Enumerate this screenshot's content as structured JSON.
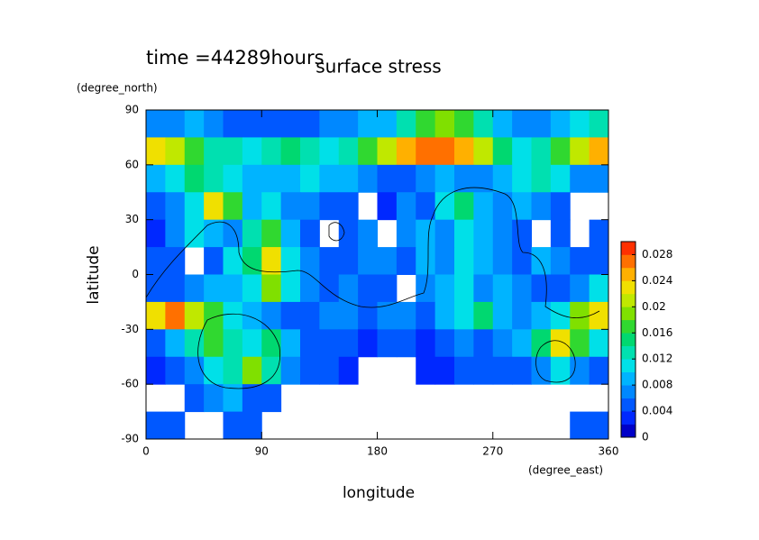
{
  "chart_data": {
    "type": "heatmap",
    "title": "surface stress",
    "subtitle": "time =44289hours",
    "x_label": "longitude",
    "x_units": "(degree_east)",
    "y_label": "latitude",
    "y_units": "(degree_north)",
    "xlim": [
      0,
      360
    ],
    "ylim": [
      -90,
      90
    ],
    "xticks": [
      0,
      90,
      180,
      270,
      360
    ],
    "yticks": [
      -90,
      -60,
      -30,
      0,
      30,
      60,
      90
    ],
    "x": [
      7.5,
      22.5,
      37.5,
      52.5,
      67.5,
      82.5,
      97.5,
      112.5,
      127.5,
      142.5,
      157.5,
      172.5,
      187.5,
      202.5,
      217.5,
      232.5,
      247.5,
      262.5,
      277.5,
      292.5,
      307.5,
      322.5,
      337.5,
      352.5
    ],
    "y": [
      82.5,
      67.5,
      52.5,
      37.5,
      22.5,
      7.5,
      -7.5,
      -22.5,
      -37.5,
      -52.5,
      -67.5,
      -82.5
    ],
    "values": [
      [
        0.006,
        0.006,
        0.008,
        0.006,
        0.005,
        0.005,
        0.004,
        0.004,
        0.005,
        0.006,
        0.006,
        0.008,
        0.008,
        0.012,
        0.016,
        0.018,
        0.016,
        0.012,
        0.008,
        0.006,
        0.006,
        0.008,
        0.01,
        0.012
      ],
      [
        0.022,
        0.02,
        0.016,
        0.012,
        0.012,
        0.01,
        0.012,
        0.014,
        0.012,
        0.01,
        0.012,
        0.016,
        0.02,
        0.024,
        0.026,
        0.026,
        0.024,
        0.02,
        0.014,
        0.01,
        0.012,
        0.016,
        0.02,
        0.024
      ],
      [
        0.008,
        0.01,
        0.014,
        0.012,
        0.01,
        0.008,
        0.008,
        0.008,
        0.01,
        0.008,
        0.008,
        0.006,
        0.004,
        0.004,
        0.006,
        0.008,
        0.006,
        0.006,
        0.008,
        0.01,
        0.012,
        0.01,
        0.006,
        0.006
      ],
      [
        0.004,
        0.006,
        0.01,
        0.022,
        0.016,
        0.008,
        0.01,
        0.006,
        0.006,
        0.004,
        0.004,
        null,
        0.002,
        0.006,
        0.004,
        0.01,
        0.014,
        0.008,
        0.006,
        0.008,
        0.006,
        0.004,
        null,
        null
      ],
      [
        0.002,
        0.006,
        0.01,
        0.008,
        0.006,
        0.012,
        0.016,
        0.008,
        0.004,
        null,
        0.004,
        0.006,
        null,
        0.006,
        0.008,
        0.006,
        0.01,
        0.008,
        0.006,
        0.004,
        null,
        0.004,
        null,
        0.004
      ],
      [
        0.004,
        0.004,
        null,
        0.004,
        0.01,
        0.014,
        0.022,
        0.01,
        0.006,
        0.004,
        0.004,
        0.006,
        0.006,
        0.004,
        0.008,
        0.006,
        0.01,
        0.008,
        0.006,
        0.004,
        0.008,
        0.006,
        0.004,
        0.004
      ],
      [
        0.004,
        0.004,
        0.006,
        0.008,
        0.008,
        0.01,
        0.018,
        0.01,
        0.006,
        0.004,
        0.006,
        0.004,
        0.004,
        null,
        0.006,
        0.008,
        0.01,
        0.006,
        0.008,
        0.006,
        0.004,
        0.004,
        0.006,
        0.01
      ],
      [
        0.022,
        0.026,
        0.02,
        0.016,
        0.01,
        0.008,
        0.006,
        0.004,
        0.004,
        0.006,
        0.006,
        0.004,
        0.006,
        0.006,
        0.004,
        0.008,
        0.01,
        0.014,
        0.008,
        0.006,
        0.008,
        0.01,
        0.018,
        0.022
      ],
      [
        0.004,
        0.008,
        0.012,
        0.016,
        0.012,
        0.01,
        0.014,
        0.008,
        0.004,
        0.004,
        0.004,
        0.002,
        0.004,
        0.004,
        0.002,
        0.004,
        0.006,
        0.004,
        0.006,
        0.008,
        0.014,
        0.022,
        0.016,
        0.01
      ],
      [
        0.002,
        0.004,
        0.006,
        0.01,
        0.012,
        0.018,
        0.012,
        0.006,
        0.004,
        0.004,
        0.002,
        null,
        null,
        null,
        0.002,
        0.002,
        0.004,
        0.004,
        0.004,
        0.004,
        0.006,
        0.01,
        0.006,
        0.004
      ],
      [
        null,
        null,
        0.004,
        0.006,
        0.008,
        0.004,
        0.004,
        null,
        null,
        null,
        null,
        null,
        null,
        null,
        null,
        null,
        null,
        null,
        null,
        null,
        null,
        null,
        null,
        null
      ],
      [
        0.004,
        0.004,
        null,
        null,
        0.004,
        0.004,
        null,
        null,
        null,
        null,
        null,
        null,
        null,
        null,
        null,
        null,
        null,
        null,
        null,
        null,
        null,
        null,
        0.004,
        0.004
      ]
    ],
    "colorbar": {
      "lim": [
        0,
        0.03
      ],
      "ticks": [
        0,
        0.004,
        0.008,
        0.012,
        0.016,
        0.02,
        0.024,
        0.028
      ],
      "step": 0.002,
      "colors": [
        "#0000c8",
        "#0028ff",
        "#0058ff",
        "#0088ff",
        "#00b4ff",
        "#00e0e8",
        "#00e0b0",
        "#00d870",
        "#30d830",
        "#80e000",
        "#c0e800",
        "#f0e000",
        "#ffb000",
        "#ff7000",
        "#ff3000"
      ]
    }
  }
}
